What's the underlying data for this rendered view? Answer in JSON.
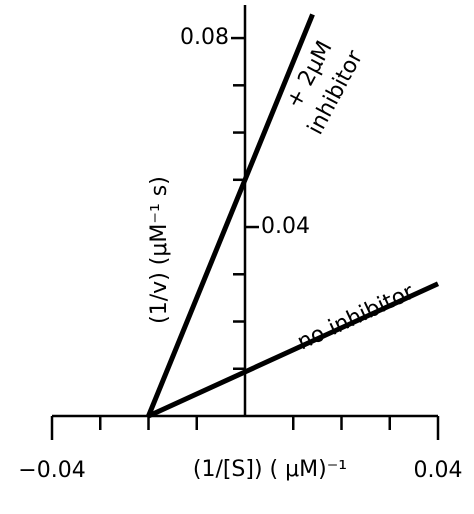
{
  "chart_data": {
    "type": "line",
    "xlabel": "(1/[S])   ( μM)⁻¹",
    "ylabel": "(1/v)    (μM⁻¹ s)",
    "annotations": [
      "+ 2μM",
      "inhibitor",
      "no inhibitor"
    ],
    "series": [
      {
        "color": "#000000",
        "x": [
          -0.02,
          0.014
        ],
        "values": [
          0,
          0.085
        ]
      },
      {
        "color": "#000000",
        "x": [
          -0.02,
          0.04
        ],
        "values": [
          0,
          0.028
        ]
      }
    ],
    "xlim": [
      -0.04,
      0.04
    ],
    "xticks": [
      {
        "value": -0.04,
        "label": "−0.04"
      },
      0.04
    ],
    "xminorticks": [
      -0.03,
      -0.02,
      -0.01,
      0.01,
      0.02,
      0.03
    ],
    "ylim": [
      0,
      0.087
    ],
    "yticks": [
      0.04,
      0.08
    ],
    "yminorticks": [
      0.01,
      0.02,
      0.03,
      0.05,
      0.06,
      0.07
    ],
    "grid": false
  }
}
